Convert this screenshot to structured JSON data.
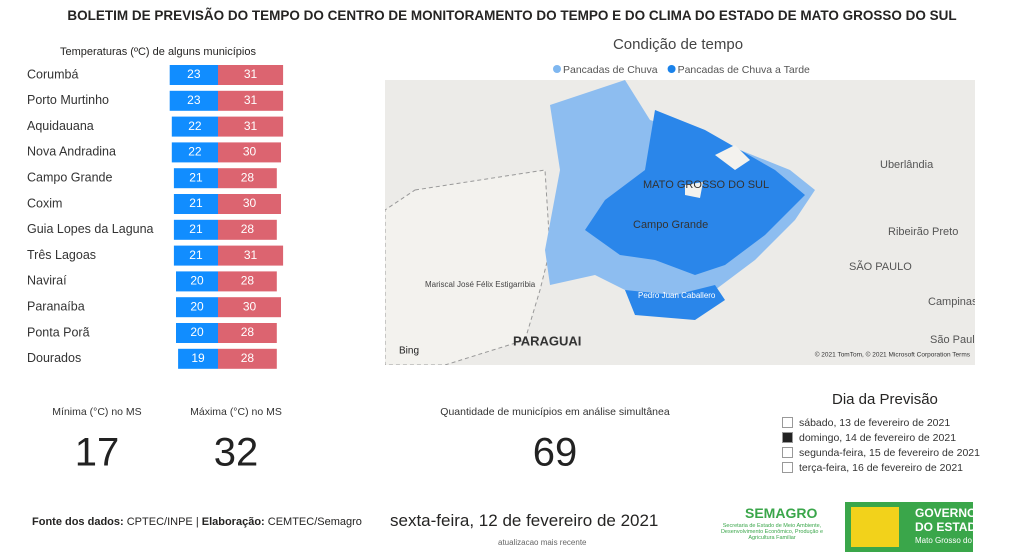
{
  "header": {
    "title": "BOLETIM DE PREVISÃO DO TEMPO DO CENTRO DE MONITORAMENTO DO TEMPO E DO CLIMA DO ESTADO DE MATO GROSSO DO SUL"
  },
  "chart_data": {
    "type": "bar",
    "title": "Temperaturas (ºC) de alguns municípios",
    "categories": [
      "Corumbá",
      "Porto Murtinho",
      "Aquidauana",
      "Nova Andradina",
      "Campo Grande",
      "Coxim",
      "Guia Lopes da Laguna",
      "Três Lagoas",
      "Naviraí",
      "Paranaíba",
      "Ponta Porã",
      "Dourados"
    ],
    "series": [
      {
        "color": "#118dff",
        "values": [
          23,
          23,
          22,
          22,
          21,
          21,
          21,
          21,
          20,
          20,
          20,
          19
        ]
      },
      {
        "color": "#dc6470",
        "values": [
          31,
          31,
          31,
          30,
          28,
          30,
          28,
          31,
          28,
          30,
          28,
          28
        ]
      }
    ]
  },
  "map": {
    "title": "Condição de tempo",
    "legend": [
      {
        "label": "Pancadas de Chuva",
        "color": "#7fb7f0"
      },
      {
        "label": "Pancadas de Chuva a Tarde",
        "color": "#1a82ea"
      }
    ],
    "labels": [
      "MATO GROSSO DO SUL",
      "Campo Grande",
      "PARAGUAI",
      "Uberlândia",
      "Ribeirão Preto",
      "SÃO PAULO",
      "Campinas",
      "São Paulo",
      "Pedro Juan Caballero",
      "Mariscal José Félix Estigarribia"
    ],
    "attribution": "Bing",
    "copyright": "© 2021 TomTom, © 2021 Microsoft Corporation  Terms"
  },
  "kpis": [
    {
      "label": "Mínima (°C) no MS",
      "value": 17
    },
    {
      "label": "Máxima (°C) no MS",
      "value": 32
    },
    {
      "label": "Quantidade de municípios em análise simultânea",
      "value": 69
    }
  ],
  "slicer": {
    "title": "Dia da Previsão",
    "options": [
      "sábado, 13 de fevereiro de 2021",
      "domingo, 14 de fevereiro de 2021",
      "segunda-feira, 15 de fevereiro de 2021",
      "terça-feira, 16 de fevereiro de 2021"
    ],
    "selected": 1
  },
  "footer": {
    "source_label": "Fonte dos dados:",
    "source": "CPTEC/INPE",
    "separator": "|",
    "made_label": "Elaboração:",
    "made": "CEMTEC/Semagro",
    "date": "sexta-feira, 12 de fevereiro de 2021",
    "date_note": "atualizacao mais recente",
    "logo1_title": "SEMAGRO",
    "logo1_text": "Secretaria de Estado de Meio Ambiente, Desenvolvimento Econômico, Produção e Agricultura Familiar",
    "logo2_line1": "GOVERNO",
    "logo2_line2": "DO ESTADO",
    "logo2_line3": "Mato Grosso do Sul"
  }
}
